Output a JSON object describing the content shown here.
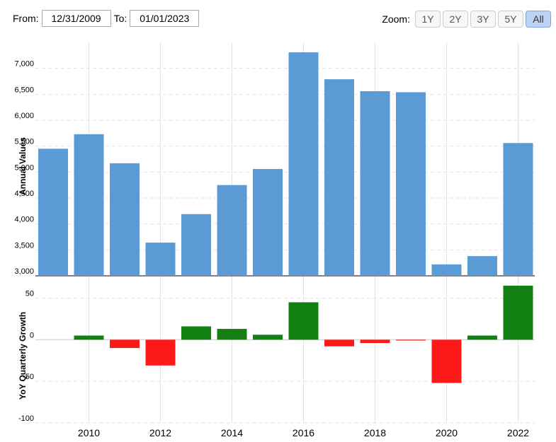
{
  "range": {
    "from_label": "From:",
    "from_value": "12/31/2009",
    "to_label": "To:",
    "to_value": "01/01/2023"
  },
  "zoom": {
    "label": "Zoom:",
    "buttons": [
      "1Y",
      "2Y",
      "3Y",
      "5Y",
      "All"
    ],
    "active": "All"
  },
  "colors": {
    "bar": "#5b9bd5",
    "positive": "#128012",
    "negative": "#ff1a1a",
    "grid": "#e3e3e3"
  },
  "chart_data": [
    {
      "type": "bar",
      "ylabel": "Annual Values",
      "ylim": [
        3000,
        7500
      ],
      "yticks": [
        "3,000",
        "3,500",
        "4,000",
        "4,500",
        "5,000",
        "5,500",
        "6,000",
        "6,500",
        "7,000"
      ],
      "ytick_values": [
        3000,
        3500,
        4000,
        4500,
        5000,
        5500,
        6000,
        6500,
        7000
      ],
      "x": [
        2009,
        2010,
        2011,
        2012,
        2013,
        2014,
        2015,
        2016,
        2017,
        2018,
        2019,
        2020,
        2021,
        2022
      ],
      "values": [
        5450,
        5730,
        5170,
        3640,
        4190,
        4750,
        5060,
        7310,
        6790,
        6560,
        6540,
        3220,
        3380,
        5560
      ],
      "grid": true
    },
    {
      "type": "bar",
      "ylabel": "YoY Quarterly Growth",
      "ylim": [
        -100,
        70
      ],
      "yticks": [
        "-100",
        "-50",
        "0",
        "50"
      ],
      "ytick_values": [
        -100,
        -50,
        0,
        50
      ],
      "x": [
        2009,
        2010,
        2011,
        2012,
        2013,
        2014,
        2015,
        2016,
        2017,
        2018,
        2019,
        2020,
        2021,
        2022
      ],
      "values": [
        0,
        5,
        -10,
        -31,
        16,
        13,
        6,
        45,
        -8,
        -4,
        -1,
        -52,
        5,
        65
      ],
      "grid": true
    }
  ],
  "xticks": [
    "2010",
    "2012",
    "2014",
    "2016",
    "2018",
    "2020",
    "2022"
  ],
  "xtick_values": [
    2010,
    2012,
    2014,
    2016,
    2018,
    2020,
    2022
  ]
}
